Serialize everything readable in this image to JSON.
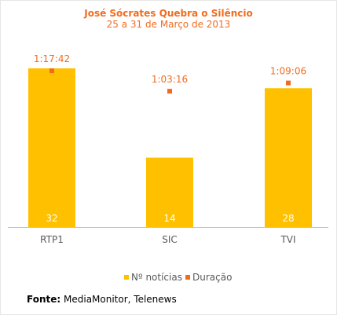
{
  "chart_data": {
    "type": "bar",
    "title": "José Sócrates Quebra o Silêncio",
    "subtitle": "25 a 31 de Março de 2013",
    "categories": [
      "RTP1",
      "SIC",
      "TVI"
    ],
    "series": [
      {
        "name": "Nº notícias",
        "values": [
          32,
          14,
          28
        ],
        "color": "#ffc000"
      },
      {
        "name": "Duração",
        "values": [
          "1:17:42",
          "1:03:16",
          "1:09:06"
        ],
        "color": "#f26b1d"
      }
    ],
    "legend_position": "bottom",
    "grid": false
  },
  "source": {
    "label": "Fonte:",
    "text": "MediaMonitor, Telenews"
  }
}
